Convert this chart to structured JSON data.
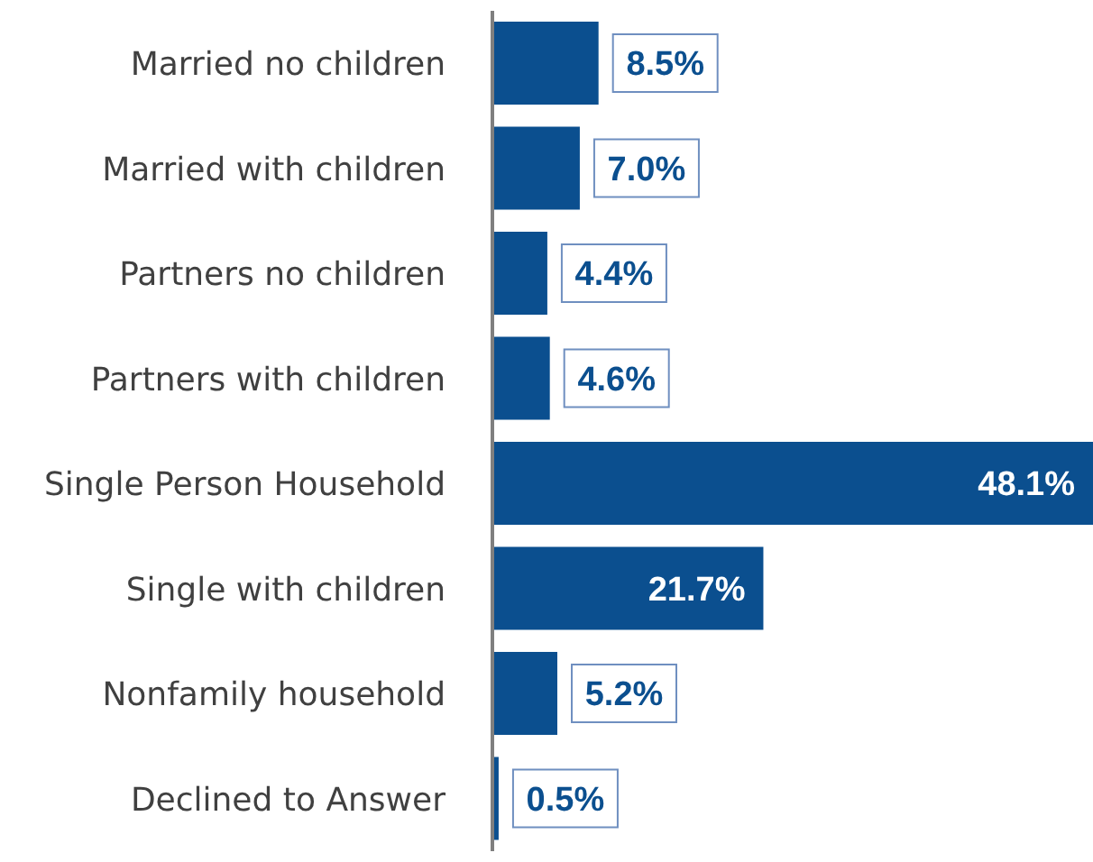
{
  "chart_data": {
    "type": "bar",
    "orientation": "horizontal",
    "categories": [
      "Married no children",
      "Married with children",
      "Partners no children",
      "Partners with children",
      "Single Person Household",
      "Single with children",
      "Nonfamily household",
      "Declined to Answer"
    ],
    "values": [
      8.5,
      7.0,
      4.4,
      4.6,
      48.1,
      21.7,
      5.2,
      0.5
    ],
    "value_labels": [
      "8.5%",
      "7.0%",
      "4.4%",
      "4.6%",
      "48.1%",
      "21.7%",
      "5.2%",
      "0.5%"
    ],
    "color": "#0b4f8f",
    "xlim": [
      0,
      48.1
    ],
    "tick_labels": "y",
    "grid": false,
    "legend": false
  }
}
